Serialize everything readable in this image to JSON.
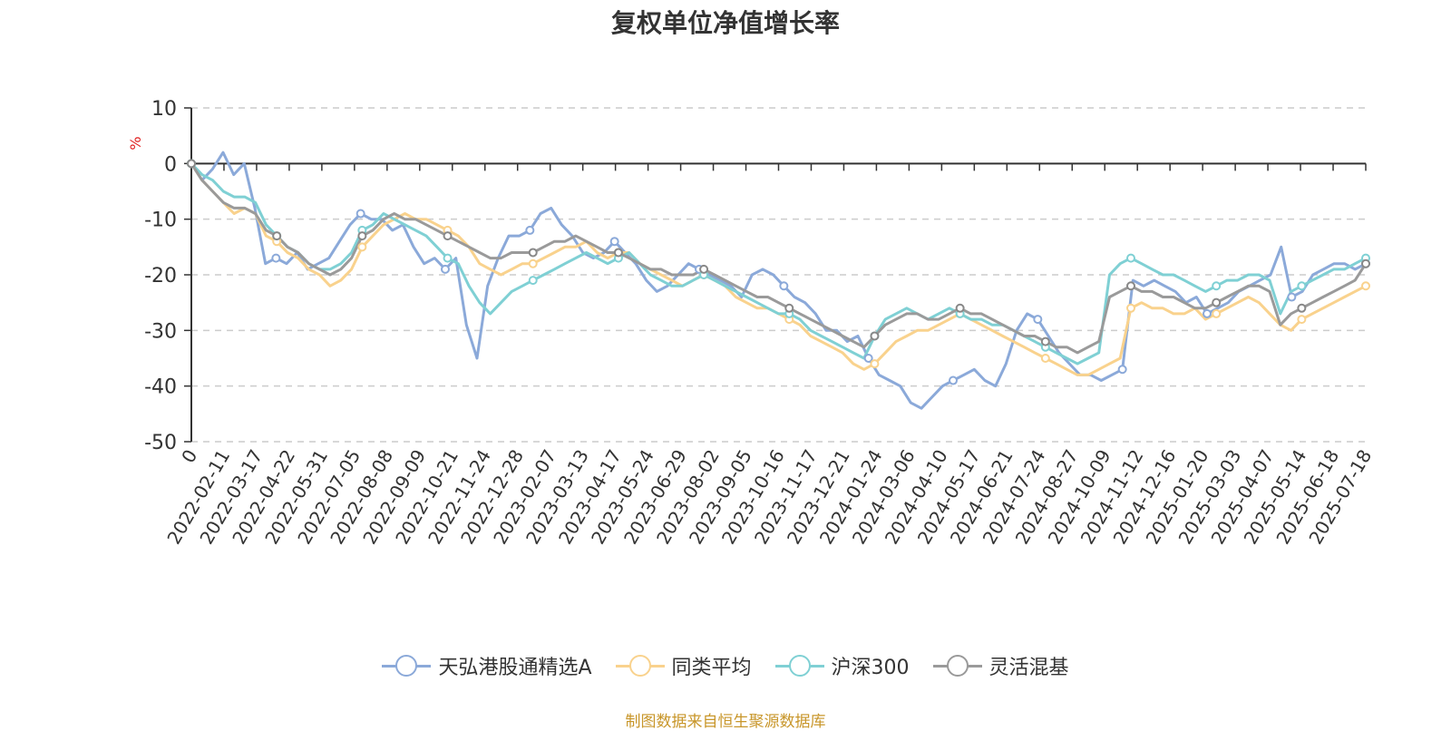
{
  "chart_data": {
    "type": "line",
    "title": "复权单位净值增长率",
    "ylabel": "%",
    "ylim": [
      -50,
      10
    ],
    "yticks": [
      10,
      0,
      -10,
      -20,
      -30,
      -40,
      -50
    ],
    "x_ticks": [
      "0",
      "2022-02-11",
      "2022-03-17",
      "2022-04-22",
      "2022-05-31",
      "2022-07-05",
      "2022-08-08",
      "2022-09-09",
      "2022-10-21",
      "2022-11-24",
      "2022-12-28",
      "2023-02-07",
      "2023-03-13",
      "2023-04-17",
      "2023-05-24",
      "2023-06-29",
      "2023-08-02",
      "2023-09-05",
      "2023-10-16",
      "2023-11-17",
      "2023-12-21",
      "2024-01-24",
      "2024-03-06",
      "2024-04-10",
      "2024-05-17",
      "2024-06-21",
      "2024-07-24",
      "2024-08-27",
      "2024-10-09",
      "2024-11-12",
      "2024-12-16",
      "2025-01-20",
      "2025-03-03",
      "2025-04-07",
      "2025-05-14",
      "2025-06-18",
      "2025-07-18"
    ],
    "grid": true,
    "legend_position": "bottom",
    "series": [
      {
        "name": "天弘港股通精选A",
        "color": "#8ba9d9",
        "values": [
          0,
          -3,
          -1,
          2,
          -2,
          0,
          -8,
          -18,
          -17,
          -18,
          -16,
          -19,
          -18,
          -17,
          -14,
          -11,
          -9,
          -10,
          -10,
          -12,
          -11,
          -15,
          -18,
          -17,
          -19,
          -17,
          -29,
          -35,
          -22,
          -17,
          -13,
          -13,
          -12,
          -9,
          -8,
          -11,
          -13,
          -16,
          -17,
          -16,
          -14,
          -16,
          -18,
          -21,
          -23,
          -22,
          -20,
          -18,
          -19,
          -20,
          -21,
          -22,
          -24,
          -20,
          -19,
          -20,
          -22,
          -24,
          -25,
          -27,
          -30,
          -30,
          -32,
          -31,
          -35,
          -38,
          -39,
          -40,
          -43,
          -44,
          -42,
          -40,
          -39,
          -38,
          -37,
          -39,
          -40,
          -36,
          -30,
          -27,
          -28,
          -31,
          -34,
          -36,
          -38,
          -38,
          -39,
          -38,
          -37,
          -21,
          -22,
          -21,
          -22,
          -23,
          -25,
          -24,
          -27,
          -26,
          -25,
          -23,
          -22,
          -21,
          -20,
          -15,
          -24,
          -23,
          -20,
          -19,
          -18,
          -18,
          -19,
          -18
        ]
      },
      {
        "name": "同类平均",
        "color": "#f9d28d",
        "values": [
          0,
          -3,
          -5,
          -7,
          -9,
          -8,
          -9,
          -13,
          -14,
          -16,
          -17,
          -19,
          -20,
          -22,
          -21,
          -19,
          -15,
          -13,
          -11,
          -10,
          -9,
          -10,
          -10,
          -11,
          -12,
          -13,
          -15,
          -18,
          -19,
          -20,
          -19,
          -18,
          -18,
          -17,
          -16,
          -15,
          -15,
          -14,
          -16,
          -17,
          -16,
          -16,
          -18,
          -19,
          -20,
          -21,
          -22,
          -21,
          -20,
          -21,
          -22,
          -24,
          -25,
          -26,
          -26,
          -27,
          -28,
          -29,
          -31,
          -32,
          -33,
          -34,
          -36,
          -37,
          -36,
          -34,
          -32,
          -31,
          -30,
          -30,
          -29,
          -28,
          -27,
          -28,
          -29,
          -30,
          -31,
          -32,
          -33,
          -34,
          -35,
          -36,
          -37,
          -38,
          -38,
          -37,
          -36,
          -35,
          -26,
          -25,
          -26,
          -26,
          -27,
          -27,
          -26,
          -28,
          -27,
          -26,
          -25,
          -24,
          -25,
          -27,
          -29,
          -30,
          -28,
          -27,
          -26,
          -25,
          -24,
          -23,
          -22
        ]
      },
      {
        "name": "沪深300",
        "color": "#7fd0d4",
        "values": [
          0,
          -2,
          -3,
          -5,
          -6,
          -6,
          -7,
          -11,
          -13,
          -15,
          -16,
          -18,
          -19,
          -19,
          -18,
          -16,
          -12,
          -11,
          -9,
          -10,
          -11,
          -12,
          -13,
          -15,
          -17,
          -18,
          -22,
          -25,
          -27,
          -25,
          -23,
          -22,
          -21,
          -20,
          -19,
          -18,
          -17,
          -16,
          -17,
          -18,
          -17,
          -16,
          -18,
          -20,
          -21,
          -22,
          -22,
          -21,
          -20,
          -21,
          -22,
          -23,
          -24,
          -25,
          -26,
          -27,
          -27,
          -28,
          -30,
          -31,
          -32,
          -33,
          -34,
          -35,
          -31,
          -28,
          -27,
          -26,
          -27,
          -28,
          -27,
          -26,
          -27,
          -28,
          -28,
          -29,
          -29,
          -30,
          -31,
          -32,
          -33,
          -34,
          -35,
          -36,
          -35,
          -34,
          -20,
          -18,
          -17,
          -18,
          -19,
          -20,
          -20,
          -21,
          -22,
          -23,
          -22,
          -21,
          -21,
          -20,
          -20,
          -21,
          -27,
          -23,
          -22,
          -21,
          -20,
          -19,
          -19,
          -18,
          -17
        ]
      },
      {
        "name": "灵活混基",
        "color": "#9a9a9a",
        "values": [
          0,
          -3,
          -5,
          -7,
          -8,
          -8,
          -9,
          -12,
          -13,
          -15,
          -16,
          -18,
          -19,
          -20,
          -19,
          -17,
          -13,
          -12,
          -10,
          -9,
          -10,
          -10,
          -11,
          -12,
          -13,
          -14,
          -15,
          -16,
          -17,
          -17,
          -16,
          -16,
          -16,
          -15,
          -14,
          -14,
          -13,
          -14,
          -15,
          -16,
          -16,
          -17,
          -18,
          -19,
          -19,
          -20,
          -20,
          -20,
          -19,
          -20,
          -21,
          -22,
          -23,
          -24,
          -24,
          -25,
          -26,
          -27,
          -28,
          -29,
          -30,
          -31,
          -32,
          -33,
          -31,
          -29,
          -28,
          -27,
          -27,
          -28,
          -28,
          -27,
          -26,
          -27,
          -27,
          -28,
          -29,
          -30,
          -31,
          -31,
          -32,
          -33,
          -33,
          -34,
          -33,
          -32,
          -24,
          -23,
          -22,
          -23,
          -23,
          -24,
          -24,
          -25,
          -26,
          -26,
          -25,
          -24,
          -23,
          -22,
          -22,
          -23,
          -29,
          -27,
          -26,
          -25,
          -24,
          -23,
          -22,
          -21,
          -18
        ]
      }
    ]
  },
  "source_note": "制图数据来自恒生聚源数据库"
}
